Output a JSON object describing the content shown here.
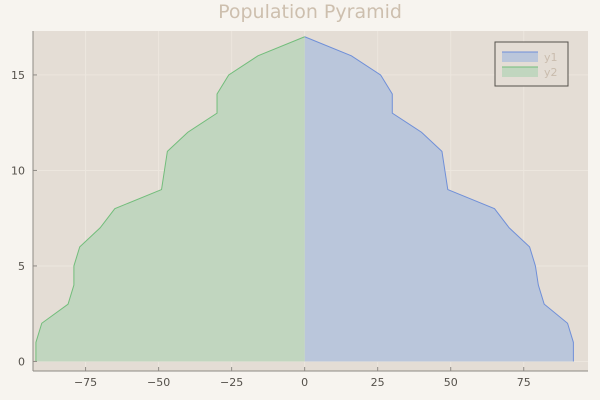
{
  "chart_data": {
    "type": "area",
    "title": "Population Pyramid",
    "xlabel": "",
    "ylabel": "",
    "xlim": [
      -93,
      97
    ],
    "ylim": [
      -0.5,
      17.3
    ],
    "grid": true,
    "legend_position": "top-right",
    "x_ticks": [
      -75,
      -50,
      -25,
      0,
      25,
      50,
      75
    ],
    "x_tick_labels": [
      "−75",
      "−50",
      "−25",
      "0",
      "25",
      "50",
      "75"
    ],
    "y_ticks": [
      0,
      5,
      10,
      15
    ],
    "y_tick_labels": [
      "0",
      "5",
      "10",
      "15"
    ],
    "y": [
      0,
      1,
      2,
      3,
      4,
      5,
      6,
      7,
      8,
      9,
      10,
      11,
      12,
      13,
      14,
      15,
      16,
      17
    ],
    "series": [
      {
        "name": "y1",
        "color": "#6f8fd8",
        "fill": "#bac6db",
        "x": [
          92,
          92,
          90,
          82,
          80,
          79,
          77,
          70,
          65,
          49,
          48,
          47,
          40,
          30,
          30,
          26,
          16,
          0
        ]
      },
      {
        "name": "y2",
        "color": "#72bd7b",
        "fill": "#c1d6bf",
        "x": [
          -92,
          -92,
          -90,
          -81,
          -79,
          -79,
          -77,
          -70,
          -65,
          -49,
          -48,
          -47,
          -40,
          -30,
          -30,
          -26,
          -16,
          0
        ]
      }
    ]
  },
  "colors": {
    "background": "#f7f4ef",
    "plot_background": "#e4ddd5",
    "grid": "#ece6de"
  }
}
